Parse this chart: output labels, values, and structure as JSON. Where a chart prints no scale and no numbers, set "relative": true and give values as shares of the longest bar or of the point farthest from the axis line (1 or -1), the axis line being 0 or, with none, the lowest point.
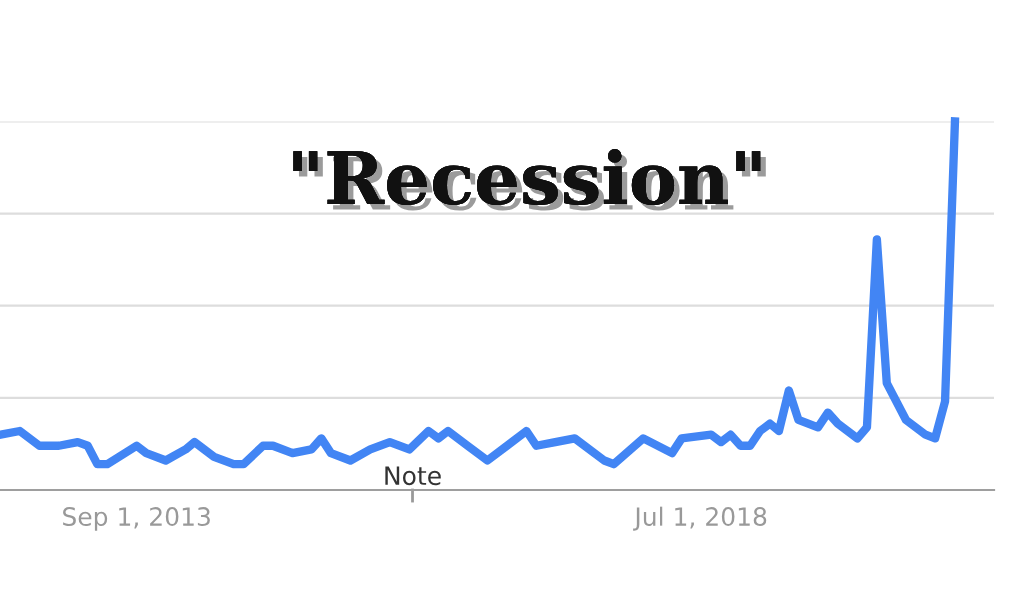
{
  "chart_data": {
    "type": "line",
    "title": "\"Recession\"",
    "relative": true,
    "grid": "y",
    "color": "#4285f4",
    "x": [
      "2012-07",
      "2012-09",
      "2012-11",
      "2012-12",
      "2013-01",
      "2013-03",
      "2013-04",
      "2013-05",
      "2013-06",
      "2013-09",
      "2013-10",
      "2013-12",
      "2014-02",
      "2014-03",
      "2014-05",
      "2014-07",
      "2014-08",
      "2014-10",
      "2014-11",
      "2015-01",
      "2015-03",
      "2015-04",
      "2015-05",
      "2015-07",
      "2015-09",
      "2015-11",
      "2016-01",
      "2016-03",
      "2016-04",
      "2016-05",
      "2016-07",
      "2016-09",
      "2017-01",
      "2017-02",
      "2017-04",
      "2017-06",
      "2017-09",
      "2017-10",
      "2018-01",
      "2018-04",
      "2018-05",
      "2018-08",
      "2018-09",
      "2018-10",
      "2018-11",
      "2018-12",
      "2019-01",
      "2019-02",
      "2019-03",
      "2019-04",
      "2019-05",
      "2019-07",
      "2019-08",
      "2019-09",
      "2019-11",
      "2019-12",
      "2020-01",
      "2020-02",
      "2020-04",
      "2020-06",
      "2020-07",
      "2020-08",
      "2020-09"
    ],
    "values": [
      0.15,
      0.16,
      0.12,
      0.12,
      0.12,
      0.13,
      0.12,
      0.07,
      0.07,
      0.12,
      0.1,
      0.08,
      0.11,
      0.13,
      0.09,
      0.07,
      0.07,
      0.12,
      0.12,
      0.1,
      0.11,
      0.14,
      0.1,
      0.08,
      0.11,
      0.13,
      0.11,
      0.16,
      0.14,
      0.16,
      0.12,
      0.08,
      0.16,
      0.12,
      0.13,
      0.14,
      0.08,
      0.07,
      0.14,
      0.1,
      0.14,
      0.15,
      0.13,
      0.15,
      0.12,
      0.12,
      0.16,
      0.18,
      0.16,
      0.27,
      0.19,
      0.17,
      0.21,
      0.18,
      0.14,
      0.17,
      0.68,
      0.29,
      0.19,
      0.15,
      0.14,
      0.24,
      1
    ],
    "xlim": [
      "2012-07",
      "2021-01"
    ],
    "xticks": [
      {
        "value": "2013-09",
        "label": "Sep 1, 2013"
      },
      {
        "value": "2018-07",
        "label": "Jul 1, 2018"
      }
    ],
    "annotations": [
      "Note"
    ]
  }
}
